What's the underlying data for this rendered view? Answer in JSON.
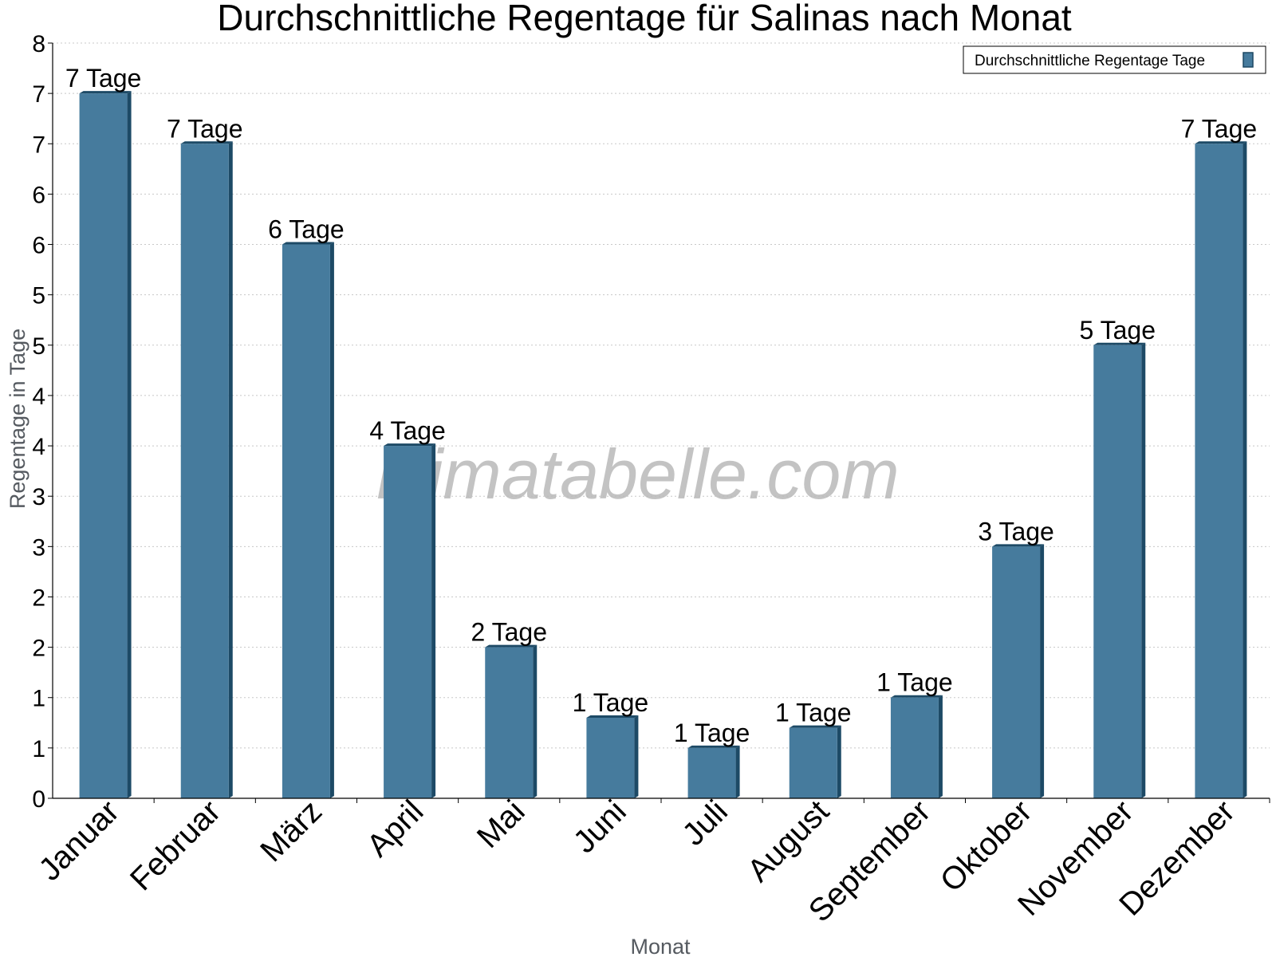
{
  "chart_data": {
    "type": "bar",
    "title": "Durchschnittliche Regentage für Salinas nach Monat",
    "xlabel": "Monat",
    "ylabel": "Regentage in Tage",
    "ylim": [
      0,
      7.5
    ],
    "y_tick_labels": [
      "0",
      "1",
      "1",
      "2",
      "2",
      "3",
      "3",
      "4",
      "4",
      "5",
      "5",
      "6",
      "6",
      "7",
      "7",
      "8"
    ],
    "grid": true,
    "legend_position": "top-right",
    "watermark": "klimatabelle.com",
    "categories": [
      "Januar",
      "Februar",
      "März",
      "April",
      "Mai",
      "Juni",
      "Juli",
      "August",
      "September",
      "Oktober",
      "November",
      "Dezember"
    ],
    "series": [
      {
        "name": "Durchschnittliche Regentage Tage",
        "color": "#467b9d",
        "values": [
          7.0,
          6.5,
          5.5,
          3.5,
          1.5,
          0.8,
          0.5,
          0.7,
          1.0,
          2.5,
          4.5,
          6.5
        ],
        "labels": [
          "7 Tage",
          "7 Tage",
          "6 Tage",
          "4 Tage",
          "2 Tage",
          "1 Tage",
          "1 Tage",
          "1 Tage",
          "1 Tage",
          "3 Tage",
          "5 Tage",
          "7 Tage"
        ]
      }
    ]
  }
}
